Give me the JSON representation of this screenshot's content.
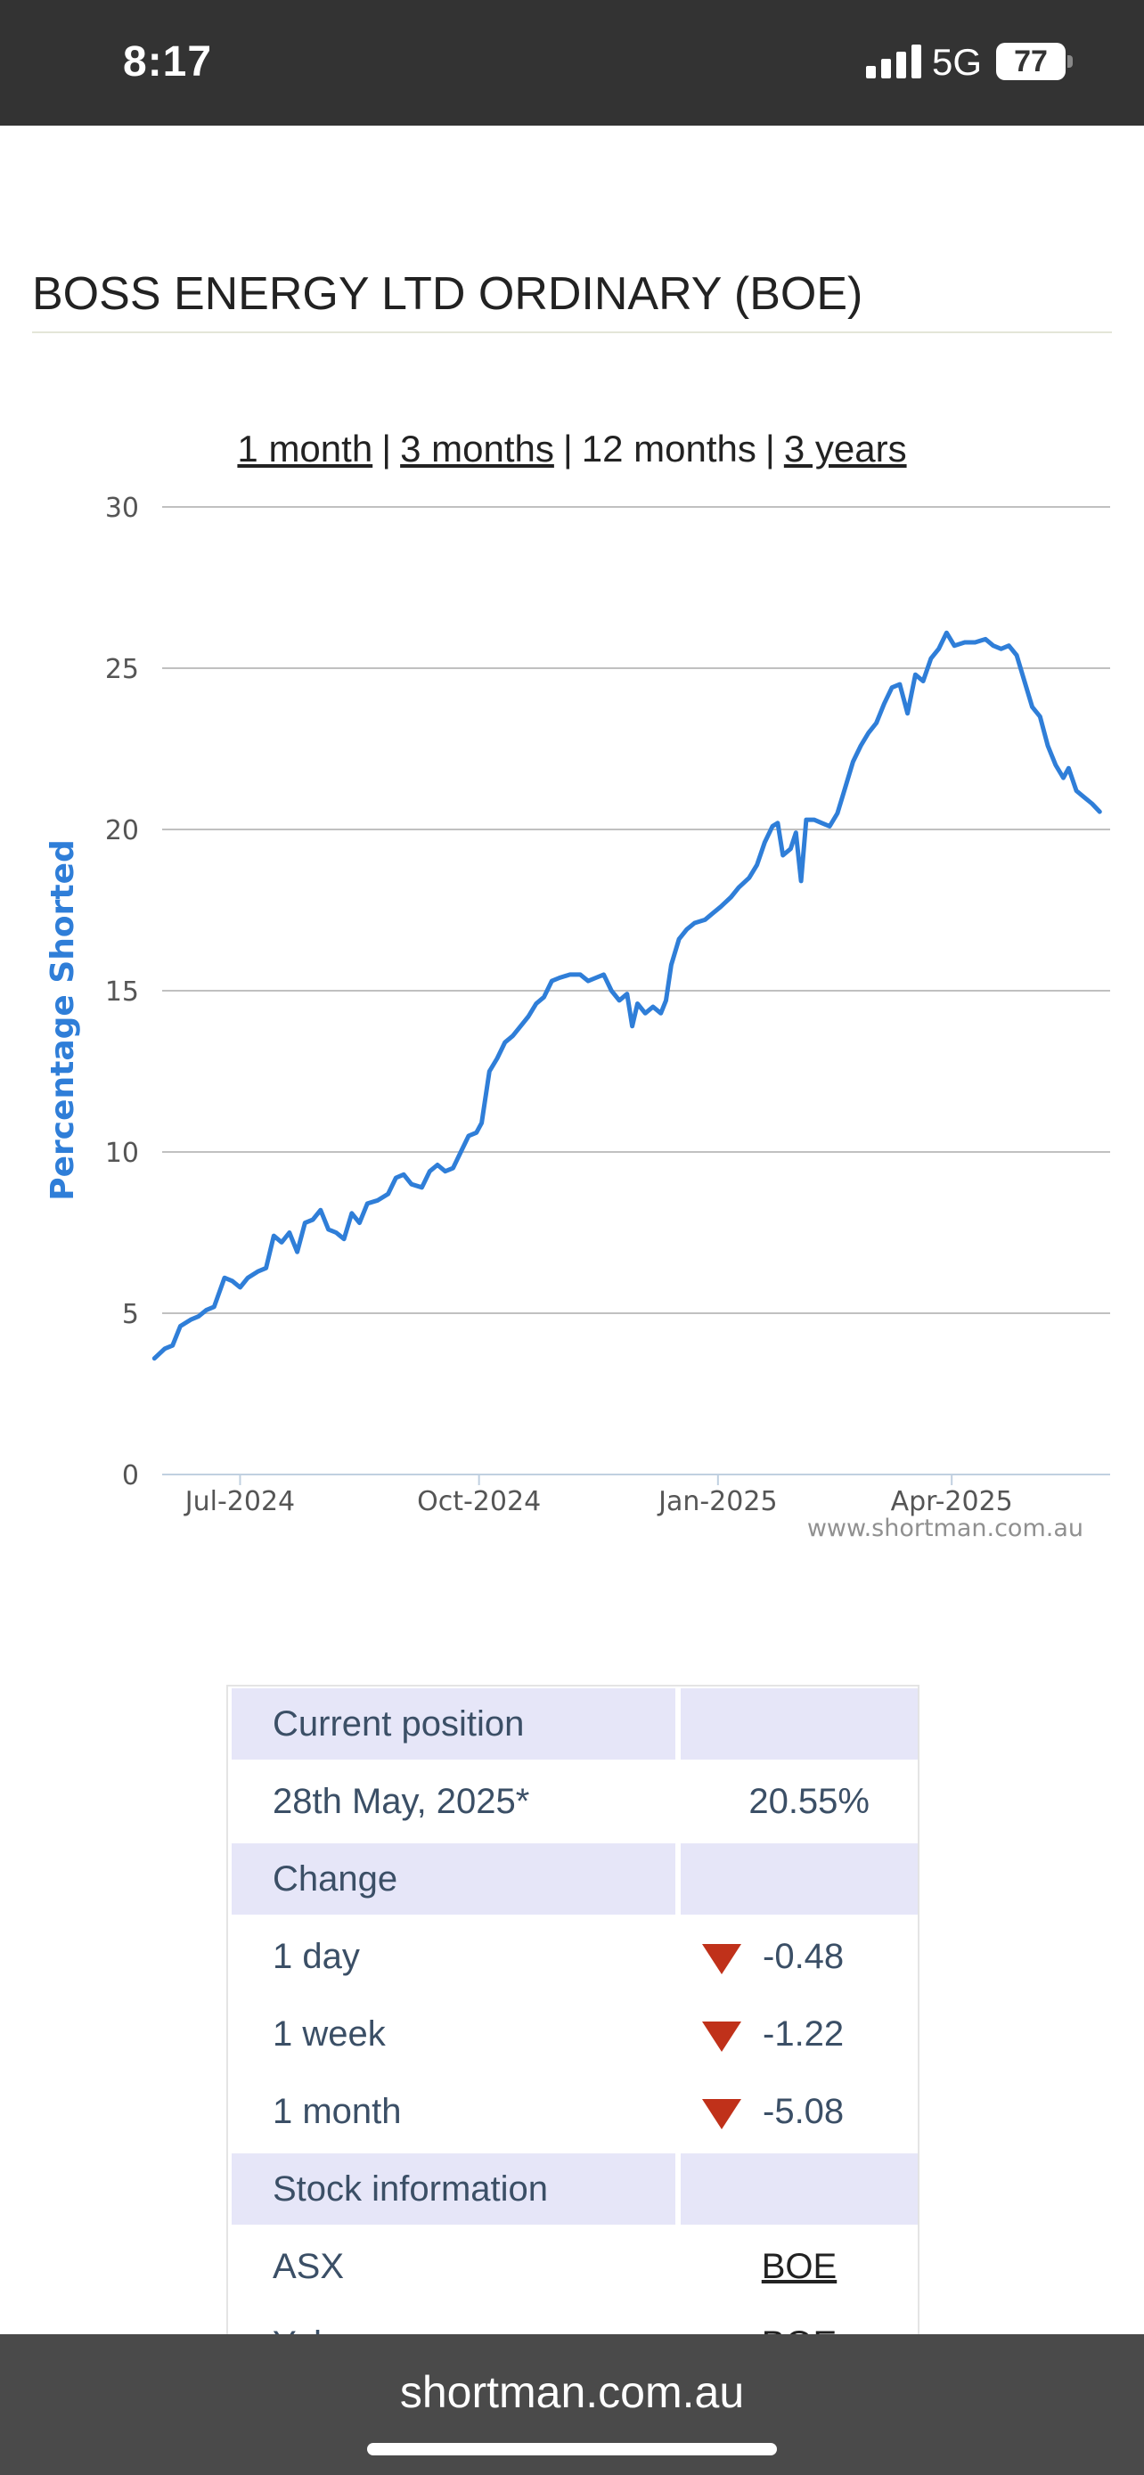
{
  "status_bar": {
    "time": "8:17",
    "network": "5G",
    "battery": "77",
    "icons": [
      "signal-icon",
      "battery-icon"
    ]
  },
  "page": {
    "title": "BOSS ENERGY LTD ORDINARY (BOE)"
  },
  "range_selector": {
    "options": [
      {
        "label": "1 month",
        "link": true
      },
      {
        "label": "3 months",
        "link": true
      },
      {
        "label": "12 months",
        "link": false
      },
      {
        "label": "3 years",
        "link": true
      }
    ],
    "separator": "|"
  },
  "chart_data": {
    "type": "line",
    "ylabel": "Percentage Shorted",
    "xlabel": "",
    "ylim": [
      0,
      30
    ],
    "yticks": [
      0,
      5,
      10,
      15,
      20,
      25,
      30
    ],
    "xticks": [
      "Jul-2024",
      "Oct-2024",
      "Jan-2025",
      "Apr-2025"
    ],
    "xtick_dates": [
      "2024-07-01",
      "2024-10-01",
      "2025-01-01",
      "2025-04-01"
    ],
    "watermark": "www.shortman.com.au",
    "grid": true,
    "series": [
      {
        "color": "#2f7ed8",
        "points": [
          [
            "2024-05-29",
            3.6
          ],
          [
            "2024-06-02",
            3.9
          ],
          [
            "2024-06-05",
            4.0
          ],
          [
            "2024-06-08",
            4.6
          ],
          [
            "2024-06-12",
            4.8
          ],
          [
            "2024-06-15",
            4.9
          ],
          [
            "2024-06-18",
            5.1
          ],
          [
            "2024-06-21",
            5.2
          ],
          [
            "2024-06-25",
            6.1
          ],
          [
            "2024-06-28",
            6.0
          ],
          [
            "2024-07-01",
            5.8
          ],
          [
            "2024-07-04",
            6.1
          ],
          [
            "2024-07-08",
            6.3
          ],
          [
            "2024-07-11",
            6.4
          ],
          [
            "2024-07-14",
            7.4
          ],
          [
            "2024-07-17",
            7.2
          ],
          [
            "2024-07-20",
            7.5
          ],
          [
            "2024-07-23",
            6.9
          ],
          [
            "2024-07-26",
            7.8
          ],
          [
            "2024-07-29",
            7.9
          ],
          [
            "2024-08-01",
            8.2
          ],
          [
            "2024-08-04",
            7.6
          ],
          [
            "2024-08-07",
            7.5
          ],
          [
            "2024-08-10",
            7.3
          ],
          [
            "2024-08-13",
            8.1
          ],
          [
            "2024-08-16",
            7.8
          ],
          [
            "2024-08-19",
            8.4
          ],
          [
            "2024-08-23",
            8.5
          ],
          [
            "2024-08-27",
            8.7
          ],
          [
            "2024-08-30",
            9.2
          ],
          [
            "2024-09-02",
            9.3
          ],
          [
            "2024-09-05",
            9.0
          ],
          [
            "2024-09-09",
            8.9
          ],
          [
            "2024-09-12",
            9.4
          ],
          [
            "2024-09-15",
            9.6
          ],
          [
            "2024-09-18",
            9.4
          ],
          [
            "2024-09-21",
            9.5
          ],
          [
            "2024-09-24",
            10.0
          ],
          [
            "2024-09-27",
            10.5
          ],
          [
            "2024-09-30",
            10.6
          ],
          [
            "2024-10-02",
            10.9
          ],
          [
            "2024-10-05",
            12.5
          ],
          [
            "2024-10-08",
            12.9
          ],
          [
            "2024-10-11",
            13.4
          ],
          [
            "2024-10-14",
            13.6
          ],
          [
            "2024-10-17",
            13.9
          ],
          [
            "2024-10-20",
            14.2
          ],
          [
            "2024-10-23",
            14.6
          ],
          [
            "2024-10-26",
            14.8
          ],
          [
            "2024-10-29",
            15.3
          ],
          [
            "2024-11-01",
            15.4
          ],
          [
            "2024-11-05",
            15.5
          ],
          [
            "2024-11-09",
            15.5
          ],
          [
            "2024-11-12",
            15.3
          ],
          [
            "2024-11-15",
            15.4
          ],
          [
            "2024-11-18",
            15.5
          ],
          [
            "2024-11-21",
            15.0
          ],
          [
            "2024-11-24",
            14.7
          ],
          [
            "2024-11-27",
            14.9
          ],
          [
            "2024-11-29",
            13.9
          ],
          [
            "2024-12-01",
            14.6
          ],
          [
            "2024-12-04",
            14.3
          ],
          [
            "2024-12-07",
            14.5
          ],
          [
            "2024-12-10",
            14.3
          ],
          [
            "2024-12-12",
            14.7
          ],
          [
            "2024-12-14",
            15.8
          ],
          [
            "2024-12-17",
            16.6
          ],
          [
            "2024-12-20",
            16.9
          ],
          [
            "2024-12-23",
            17.1
          ],
          [
            "2024-12-27",
            17.2
          ],
          [
            "2024-12-30",
            17.4
          ],
          [
            "2025-01-02",
            17.6
          ],
          [
            "2025-01-06",
            17.9
          ],
          [
            "2025-01-09",
            18.2
          ],
          [
            "2025-01-13",
            18.5
          ],
          [
            "2025-01-16",
            18.9
          ],
          [
            "2025-01-19",
            19.6
          ],
          [
            "2025-01-22",
            20.1
          ],
          [
            "2025-01-24",
            20.2
          ],
          [
            "2025-01-26",
            19.2
          ],
          [
            "2025-01-29",
            19.4
          ],
          [
            "2025-01-31",
            19.9
          ],
          [
            "2025-02-02",
            18.4
          ],
          [
            "2025-02-04",
            20.3
          ],
          [
            "2025-02-07",
            20.3
          ],
          [
            "2025-02-10",
            20.2
          ],
          [
            "2025-02-13",
            20.1
          ],
          [
            "2025-02-16",
            20.5
          ],
          [
            "2025-02-19",
            21.3
          ],
          [
            "2025-02-22",
            22.1
          ],
          [
            "2025-02-25",
            22.6
          ],
          [
            "2025-02-28",
            23.0
          ],
          [
            "2025-03-03",
            23.3
          ],
          [
            "2025-03-06",
            23.9
          ],
          [
            "2025-03-09",
            24.4
          ],
          [
            "2025-03-12",
            24.5
          ],
          [
            "2025-03-15",
            23.6
          ],
          [
            "2025-03-18",
            24.8
          ],
          [
            "2025-03-21",
            24.6
          ],
          [
            "2025-03-24",
            25.3
          ],
          [
            "2025-03-27",
            25.6
          ],
          [
            "2025-03-30",
            26.1
          ],
          [
            "2025-04-02",
            25.7
          ],
          [
            "2025-04-06",
            25.8
          ],
          [
            "2025-04-10",
            25.8
          ],
          [
            "2025-04-14",
            25.9
          ],
          [
            "2025-04-17",
            25.7
          ],
          [
            "2025-04-20",
            25.6
          ],
          [
            "2025-04-23",
            25.7
          ],
          [
            "2025-04-26",
            25.4
          ],
          [
            "2025-04-29",
            24.6
          ],
          [
            "2025-05-02",
            23.8
          ],
          [
            "2025-05-05",
            23.5
          ],
          [
            "2025-05-08",
            22.6
          ],
          [
            "2025-05-11",
            22.0
          ],
          [
            "2025-05-14",
            21.6
          ],
          [
            "2025-05-16",
            21.9
          ],
          [
            "2025-05-19",
            21.2
          ],
          [
            "2025-05-22",
            21.0
          ],
          [
            "2025-05-25",
            20.8
          ],
          [
            "2025-05-28",
            20.55
          ]
        ]
      }
    ]
  },
  "table": {
    "rows": [
      {
        "type": "header",
        "left": "Current position",
        "right": ""
      },
      {
        "type": "value",
        "left": "28th May, 2025*",
        "right": "20.55%"
      },
      {
        "type": "header",
        "left": "Change",
        "right": ""
      },
      {
        "type": "change",
        "left": "1 day",
        "right": "-0.48",
        "direction": "down"
      },
      {
        "type": "change",
        "left": "1 week",
        "right": "-1.22",
        "direction": "down"
      },
      {
        "type": "change",
        "left": "1 month",
        "right": "-5.08",
        "direction": "down"
      },
      {
        "type": "header",
        "left": "Stock information",
        "right": ""
      },
      {
        "type": "link",
        "left": "ASX",
        "right": "BOE"
      },
      {
        "type": "link",
        "left": "Yahoo",
        "right": "BOE"
      }
    ],
    "down_color": "#c0311a"
  },
  "browser": {
    "url": "shortman.com.au"
  }
}
